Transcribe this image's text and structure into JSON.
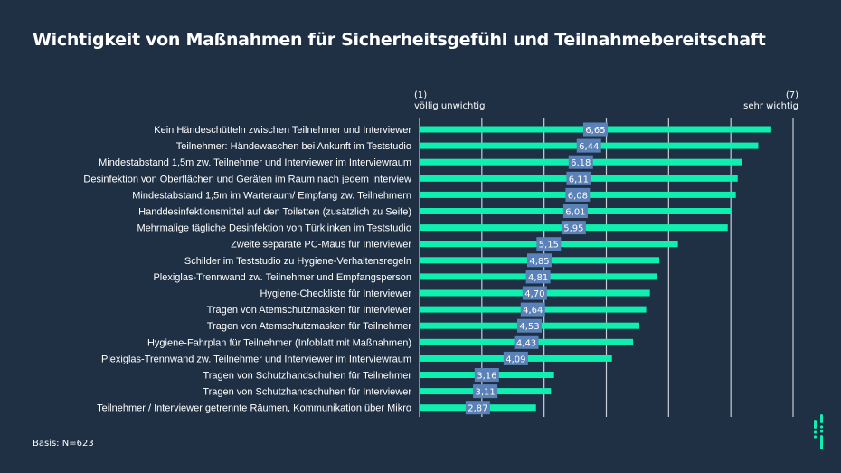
{
  "title": "Wichtigkeit von Maßnahmen für Sicherheitsgefühl und Teilnahmebereitschaft",
  "scale": {
    "left_code": "(1)",
    "left_text": "völlig unwichtig",
    "right_code": "(7)",
    "right_text": "sehr wichtig"
  },
  "footer": "Basis: N=623",
  "colors": {
    "background": "#1f3045",
    "bar": "#0ff0b0",
    "value_box": "#5b82b8",
    "grid": "#c9ced6"
  },
  "chart_data": {
    "type": "bar",
    "orientation": "horizontal",
    "title": "Wichtigkeit von Maßnahmen für Sicherheitsgefühl und Teilnahmebereitschaft",
    "xlabel": "",
    "ylabel": "",
    "xlim": [
      1,
      7
    ],
    "grid": true,
    "xticks": [
      1,
      2,
      3,
      4,
      5,
      6,
      7
    ],
    "categories": [
      "Kein Händeschütteln zwischen Teilnehmer und Interviewer",
      "Teilnehmer: Händewaschen bei Ankunft im Teststudio",
      "Mindestabstand 1,5m zw. Teilnehmer und Interviewer im Interviewraum",
      "Desinfektion von Oberflächen und Geräten im Raum nach jedem Interview",
      "Mindestabstand 1,5m im Warteraum/ Empfang zw. Teilnehmern",
      "Handdesinfektionsmittel auf den Toiletten (zusätzlich zu Seife)",
      "Mehrmalige tägliche Desinfektion von Türklinken im Teststudio",
      "Zweite separate PC-Maus für Interviewer",
      "Schilder im Teststudio zu Hygiene-Verhaltensregeln",
      "Plexiglas-Trennwand zw. Teilnehmer und Empfangsperson",
      "Hygiene-Checkliste für Interviewer",
      "Tragen von Atemschutzmasken für Interviewer",
      "Tragen von Atemschutzmasken für Teilnehmer",
      "Hygiene-Fahrplan für Teilnehmer (Infoblatt mit Maßnahmen)",
      "Plexiglas-Trennwand zw. Teilnehmer und Interviewer im Interviewraum",
      "Tragen von Schutzhandschuhen für Teilnehmer",
      "Tragen von Schutzhandschuhen für Interviewer",
      "Teilnehmer / Interviewer getrennte Räumen, Kommunikation über Mikro"
    ],
    "values": [
      6.65,
      6.44,
      6.18,
      6.11,
      6.08,
      6.01,
      5.95,
      5.15,
      4.85,
      4.81,
      4.7,
      4.64,
      4.53,
      4.43,
      4.09,
      3.16,
      3.11,
      2.87
    ],
    "value_labels": [
      "6,65",
      "6,44",
      "6,18",
      "6,11",
      "6,08",
      "6,01",
      "5,95",
      "5,15",
      "4,85",
      "4,81",
      "4,70",
      "4,64",
      "4,53",
      "4,43",
      "4,09",
      "3,16",
      "3,11",
      "2,87"
    ]
  }
}
